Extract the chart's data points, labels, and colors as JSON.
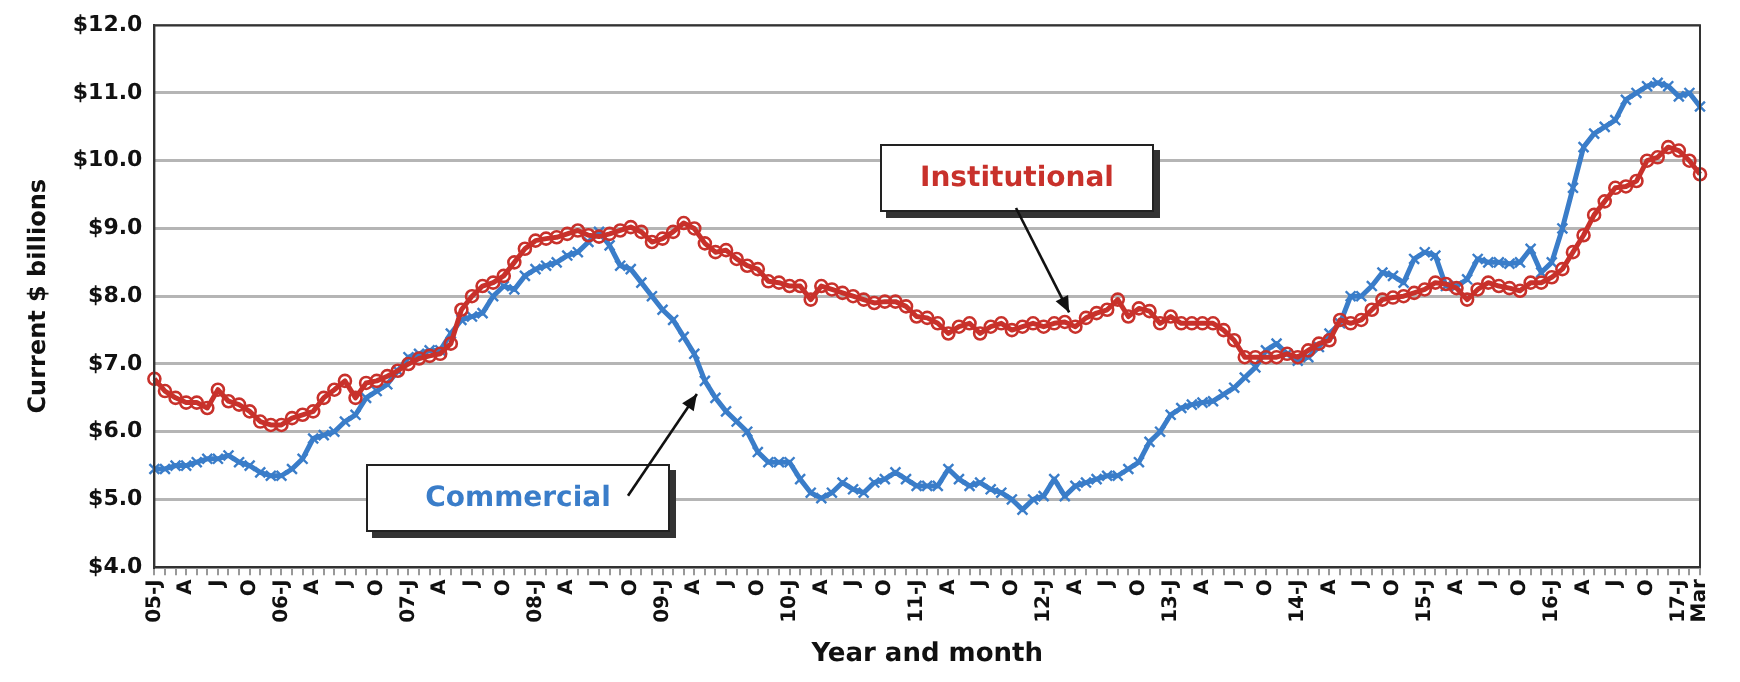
{
  "chart_data": {
    "type": "line",
    "xlabel": "Year and month",
    "ylabel": "Current $ billions",
    "categories": [
      "05-J",
      null,
      null,
      "A",
      null,
      null,
      "J",
      null,
      null,
      "O",
      null,
      null,
      "06-J",
      null,
      null,
      "A",
      null,
      null,
      "J",
      null,
      null,
      "O",
      null,
      null,
      "07-J",
      null,
      null,
      "A",
      null,
      null,
      "J",
      null,
      null,
      "O",
      null,
      null,
      "08-J",
      null,
      null,
      "A",
      null,
      null,
      "J",
      null,
      null,
      "O",
      null,
      null,
      "09-J",
      null,
      null,
      "A",
      null,
      null,
      "J",
      null,
      null,
      "O",
      null,
      null,
      "10-J",
      null,
      null,
      "A",
      null,
      null,
      "J",
      null,
      null,
      "O",
      null,
      null,
      "11-J",
      null,
      null,
      "A",
      null,
      null,
      "J",
      null,
      null,
      "O",
      null,
      null,
      "12-J",
      null,
      null,
      "A",
      null,
      null,
      "J",
      null,
      null,
      "O",
      null,
      null,
      "13-J",
      null,
      null,
      "A",
      null,
      null,
      "J",
      null,
      null,
      "O",
      null,
      null,
      "14-J",
      null,
      null,
      "A",
      null,
      null,
      "J",
      null,
      null,
      "O",
      null,
      null,
      "15-J",
      null,
      null,
      "A",
      null,
      null,
      "J",
      null,
      null,
      "O",
      null,
      null,
      "16-J",
      null,
      null,
      "A",
      null,
      null,
      "J",
      null,
      null,
      "O",
      null,
      null,
      "17-J",
      null,
      "Mar"
    ],
    "series": [
      {
        "name": "Commercial",
        "color": "#3a7dc9",
        "marker": "cross",
        "values": [
          5.45,
          5.45,
          5.5,
          5.5,
          5.55,
          5.6,
          5.6,
          5.65,
          5.55,
          5.5,
          5.4,
          5.35,
          5.35,
          5.45,
          5.6,
          5.9,
          5.95,
          6.0,
          6.15,
          6.25,
          6.5,
          6.6,
          6.7,
          6.9,
          7.1,
          7.15,
          7.2,
          7.2,
          7.45,
          7.65,
          7.7,
          7.75,
          8.0,
          8.15,
          8.1,
          8.3,
          8.4,
          8.45,
          8.5,
          8.6,
          8.65,
          8.8,
          8.95,
          8.75,
          8.45,
          8.4,
          8.2,
          8.0,
          7.8,
          7.65,
          7.4,
          7.15,
          6.75,
          6.5,
          6.3,
          6.15,
          6.0,
          5.7,
          5.55,
          5.55,
          5.55,
          5.3,
          5.1,
          5.02,
          5.1,
          5.25,
          5.15,
          5.1,
          5.25,
          5.3,
          5.4,
          5.3,
          5.2,
          5.2,
          5.2,
          5.45,
          5.3,
          5.2,
          5.25,
          5.15,
          5.1,
          5.0,
          4.85,
          5.0,
          5.05,
          5.3,
          5.05,
          5.2,
          5.25,
          5.3,
          5.35,
          5.35,
          5.45,
          5.55,
          5.85,
          6.0,
          6.25,
          6.35,
          6.4,
          6.43,
          6.45,
          6.55,
          6.65,
          6.8,
          6.95,
          7.2,
          7.3,
          7.15,
          7.05,
          7.1,
          7.25,
          7.45,
          7.6,
          8.0,
          8.0,
          8.15,
          8.35,
          8.3,
          8.2,
          8.55,
          8.65,
          8.6,
          8.15,
          8.15,
          8.25,
          8.55,
          8.5,
          8.5,
          8.48,
          8.5,
          8.7,
          8.35,
          8.5,
          9.0,
          9.6,
          10.2,
          10.4,
          10.5,
          10.6,
          10.9,
          11.0,
          11.1,
          11.15,
          11.1,
          10.95,
          11.0,
          10.8
        ]
      },
      {
        "name": "Institutional",
        "color": "#c8312b",
        "marker": "circle",
        "values": [
          6.78,
          6.6,
          6.5,
          6.43,
          6.43,
          6.35,
          6.62,
          6.45,
          6.4,
          6.3,
          6.15,
          6.1,
          6.1,
          6.2,
          6.25,
          6.3,
          6.5,
          6.62,
          6.75,
          6.5,
          6.72,
          6.75,
          6.82,
          6.9,
          7.0,
          7.08,
          7.12,
          7.15,
          7.3,
          7.8,
          8.0,
          8.15,
          8.2,
          8.3,
          8.5,
          8.7,
          8.82,
          8.85,
          8.87,
          8.92,
          8.97,
          8.9,
          8.88,
          8.92,
          8.97,
          9.02,
          8.95,
          8.8,
          8.85,
          8.95,
          9.08,
          9.0,
          8.78,
          8.65,
          8.68,
          8.55,
          8.45,
          8.4,
          8.22,
          8.2,
          8.15,
          8.15,
          7.95,
          8.15,
          8.1,
          8.05,
          8.0,
          7.95,
          7.9,
          7.92,
          7.92,
          7.85,
          7.7,
          7.68,
          7.6,
          7.45,
          7.55,
          7.6,
          7.45,
          7.55,
          7.6,
          7.5,
          7.55,
          7.6,
          7.55,
          7.6,
          7.62,
          7.55,
          7.68,
          7.75,
          7.8,
          7.95,
          7.7,
          7.82,
          7.78,
          7.6,
          7.7,
          7.6,
          7.6,
          7.6,
          7.6,
          7.5,
          7.35,
          7.1,
          7.1,
          7.1,
          7.1,
          7.15,
          7.1,
          7.2,
          7.3,
          7.35,
          7.65,
          7.6,
          7.65,
          7.8,
          7.95,
          7.98,
          8.0,
          8.05,
          8.1,
          8.2,
          8.18,
          8.12,
          7.95,
          8.1,
          8.2,
          8.15,
          8.12,
          8.08,
          8.2,
          8.2,
          8.28,
          8.4,
          8.65,
          8.9,
          9.2,
          9.4,
          9.6,
          9.62,
          9.7,
          10.0,
          10.05,
          10.2,
          10.15,
          10.0,
          9.8
        ]
      }
    ],
    "ylim": [
      4,
      12
    ],
    "yticks": [
      {
        "value": 4,
        "label": "$4.0"
      },
      {
        "value": 5,
        "label": "$5.0"
      },
      {
        "value": 6,
        "label": "$6.0"
      },
      {
        "value": 7,
        "label": "$7.0"
      },
      {
        "value": 8,
        "label": "$8.0"
      },
      {
        "value": 9,
        "label": "$9.0"
      },
      {
        "value": 10,
        "label": "$10.0"
      },
      {
        "value": 11,
        "label": "$11.0"
      },
      {
        "value": 12,
        "label": "$12.0"
      }
    ],
    "grid": "y",
    "legend": false,
    "line_style": "solid"
  }
}
